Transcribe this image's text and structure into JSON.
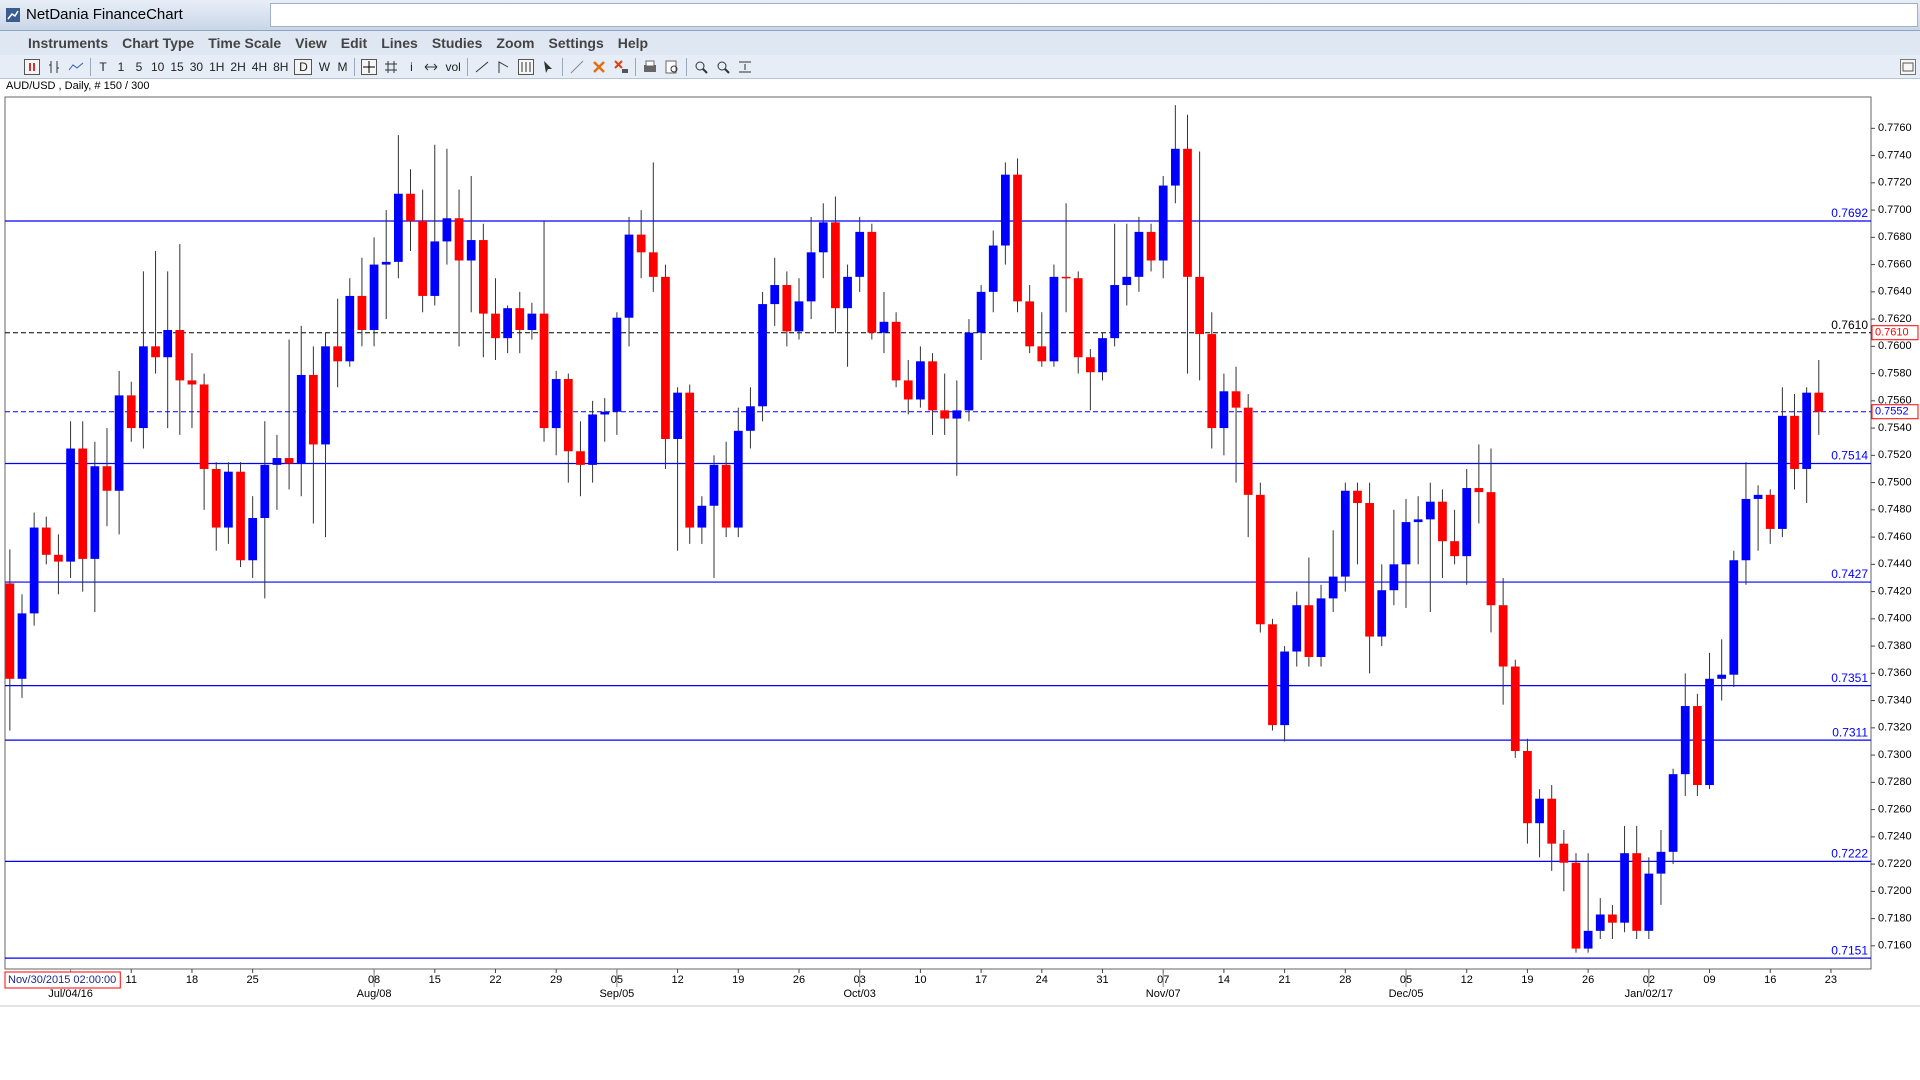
{
  "window": {
    "title": "NetDania FinanceChart"
  },
  "menu": [
    "Instruments",
    "Chart Type",
    "Time Scale",
    "View",
    "Edit",
    "Lines",
    "Studies",
    "Zoom",
    "Settings",
    "Help"
  ],
  "toolbar": [
    "T",
    "1",
    "5",
    "10",
    "15",
    "30",
    "1H",
    "2H",
    "4H",
    "8H",
    "D",
    "W",
    "M",
    "i",
    "vol"
  ],
  "cursor_label": "Nov/30/2015 02:00:00",
  "chart_data": {
    "type": "candlestick",
    "title": "AUD/USD , Daily, # 150 / 300",
    "up_color": "#0000ff",
    "down_color": "#ff0000",
    "open": [
      0.7426,
      0.7356,
      0.7404,
      0.7467,
      0.7447,
      0.7442,
      0.7525,
      0.7444,
      0.7512,
      0.7494,
      0.7564,
      0.754,
      0.76,
      0.7592,
      0.7612,
      0.7575,
      0.7572,
      0.751,
      0.7467,
      0.7508,
      0.7443,
      0.7474,
      0.7513,
      0.7518,
      0.7514,
      0.7579,
      0.7528,
      0.76,
      0.7589,
      0.7637,
      0.7612,
      0.766,
      0.7662,
      0.7712,
      0.7692,
      0.7637,
      0.7677,
      0.7694,
      0.7663,
      0.7678,
      0.7624,
      0.7606,
      0.7628,
      0.7612,
      0.7624,
      0.754,
      0.7576,
      0.7523,
      0.7513,
      0.755,
      0.7552,
      0.7621,
      0.7682,
      0.7669,
      0.7651,
      0.7532,
      0.7566,
      0.7467,
      0.7483,
      0.7513,
      0.7467,
      0.7538,
      0.7556,
      0.7631,
      0.7645,
      0.7611,
      0.7633,
      0.7669,
      0.7691,
      0.7628,
      0.7651,
      0.7684,
      0.761,
      0.7618,
      0.7575,
      0.7561,
      0.7589,
      0.7553,
      0.7547,
      0.7553,
      0.761,
      0.764,
      0.7674,
      0.7726,
      0.7633,
      0.76,
      0.7589,
      0.7651,
      0.765,
      0.7592,
      0.7581,
      0.7606,
      0.7645,
      0.7651,
      0.7684,
      0.7663,
      0.7718,
      0.7745,
      0.7651,
      0.7609,
      0.754,
      0.7567,
      0.7555,
      0.7491,
      0.7396,
      0.7322,
      0.7376,
      0.741,
      0.7372,
      0.7415,
      0.7431,
      0.7494,
      0.7485,
      0.7387,
      0.7421,
      0.744,
      0.7471,
      0.7473,
      0.7486,
      0.7457,
      0.7446,
      0.7496,
      0.7493,
      0.741,
      0.7365,
      0.7303,
      0.725,
      0.7268,
      0.7235,
      0.7221,
      0.7158,
      0.7171,
      0.7183,
      0.7177,
      0.7228,
      0.7171,
      0.7213,
      0.7229,
      0.7286,
      0.7336,
      0.7278,
      0.7356,
      0.7359,
      0.7443,
      0.7488,
      0.7491,
      0.7466,
      0.7549,
      0.751,
      0.7566
    ],
    "high": [
      0.7451,
      0.7418,
      0.7478,
      0.7475,
      0.7462,
      0.7545,
      0.7545,
      0.753,
      0.754,
      0.7582,
      0.7574,
      0.7655,
      0.767,
      0.7655,
      0.7675,
      0.7595,
      0.758,
      0.7515,
      0.7515,
      0.7515,
      0.749,
      0.7545,
      0.7535,
      0.7605,
      0.7615,
      0.76,
      0.761,
      0.7635,
      0.765,
      0.7665,
      0.768,
      0.77,
      0.7755,
      0.773,
      0.7715,
      0.7748,
      0.7745,
      0.7715,
      0.7725,
      0.769,
      0.765,
      0.763,
      0.764,
      0.7632,
      0.7692,
      0.7582,
      0.758,
      0.7545,
      0.756,
      0.7562,
      0.7625,
      0.7695,
      0.77,
      0.7735,
      0.766,
      0.757,
      0.7572,
      0.749,
      0.752,
      0.753,
      0.7555,
      0.757,
      0.764,
      0.7665,
      0.7655,
      0.765,
      0.7695,
      0.7705,
      0.771,
      0.766,
      0.7695,
      0.769,
      0.764,
      0.7625,
      0.759,
      0.76,
      0.7595,
      0.758,
      0.7575,
      0.762,
      0.7645,
      0.7685,
      0.7735,
      0.7738,
      0.7645,
      0.7625,
      0.766,
      0.7705,
      0.7655,
      0.7598,
      0.761,
      0.769,
      0.769,
      0.7695,
      0.769,
      0.7725,
      0.7777,
      0.777,
      0.7743,
      0.7625,
      0.758,
      0.7585,
      0.7565,
      0.75,
      0.74,
      0.738,
      0.742,
      0.7445,
      0.7425,
      0.7465,
      0.75,
      0.75,
      0.75,
      0.744,
      0.748,
      0.7488,
      0.749,
      0.75,
      0.7495,
      0.748,
      0.751,
      0.7528,
      0.7525,
      0.743,
      0.737,
      0.7312,
      0.7275,
      0.7278,
      0.7245,
      0.7228,
      0.7228,
      0.7195,
      0.719,
      0.7248,
      0.7248,
      0.7225,
      0.7245,
      0.729,
      0.736,
      0.7345,
      0.7375,
      0.7385,
      0.745,
      0.7515,
      0.7498,
      0.7495,
      0.757,
      0.7565,
      0.757,
      0.759
    ],
    "low": [
      0.7318,
      0.7342,
      0.7395,
      0.744,
      0.7418,
      0.743,
      0.742,
      0.7405,
      0.7468,
      0.7462,
      0.753,
      0.7525,
      0.758,
      0.754,
      0.7535,
      0.754,
      0.748,
      0.745,
      0.7455,
      0.7438,
      0.743,
      0.7415,
      0.748,
      0.7495,
      0.749,
      0.747,
      0.746,
      0.757,
      0.7585,
      0.76,
      0.76,
      0.762,
      0.765,
      0.767,
      0.7625,
      0.763,
      0.766,
      0.76,
      0.7625,
      0.7592,
      0.759,
      0.7595,
      0.7595,
      0.7605,
      0.753,
      0.752,
      0.75,
      0.749,
      0.75,
      0.753,
      0.7535,
      0.76,
      0.765,
      0.764,
      0.751,
      0.745,
      0.7455,
      0.7455,
      0.743,
      0.746,
      0.746,
      0.7525,
      0.7545,
      0.7615,
      0.76,
      0.7605,
      0.762,
      0.765,
      0.761,
      0.7585,
      0.764,
      0.7605,
      0.7595,
      0.757,
      0.755,
      0.7555,
      0.7535,
      0.7535,
      0.7505,
      0.7545,
      0.759,
      0.7625,
      0.766,
      0.7625,
      0.7595,
      0.7585,
      0.7585,
      0.7625,
      0.758,
      0.7553,
      0.7575,
      0.76,
      0.763,
      0.764,
      0.7655,
      0.765,
      0.7705,
      0.758,
      0.7575,
      0.7525,
      0.752,
      0.75,
      0.746,
      0.739,
      0.7318,
      0.731,
      0.7365,
      0.7365,
      0.7365,
      0.7405,
      0.742,
      0.744,
      0.736,
      0.738,
      0.741,
      0.7408,
      0.744,
      0.7405,
      0.743,
      0.744,
      0.7425,
      0.747,
      0.739,
      0.7337,
      0.7298,
      0.7235,
      0.7225,
      0.7215,
      0.72,
      0.7155,
      0.7155,
      0.7165,
      0.7165,
      0.717,
      0.7165,
      0.7165,
      0.719,
      0.722,
      0.727,
      0.727,
      0.7275,
      0.734,
      0.735,
      0.7425,
      0.745,
      0.7455,
      0.746,
      0.7495,
      0.7485,
      0.7535
    ],
    "close": [
      0.7356,
      0.7404,
      0.7467,
      0.7447,
      0.7442,
      0.7525,
      0.7444,
      0.7512,
      0.7494,
      0.7564,
      0.754,
      0.76,
      0.7592,
      0.7612,
      0.7575,
      0.7572,
      0.751,
      0.7467,
      0.7508,
      0.7443,
      0.7474,
      0.7513,
      0.7518,
      0.7514,
      0.7579,
      0.7528,
      0.76,
      0.7589,
      0.7637,
      0.7612,
      0.766,
      0.7662,
      0.7712,
      0.7692,
      0.7637,
      0.7677,
      0.7694,
      0.7663,
      0.7678,
      0.7624,
      0.7606,
      0.7628,
      0.7612,
      0.7624,
      0.754,
      0.7576,
      0.7523,
      0.7513,
      0.755,
      0.7552,
      0.7621,
      0.7682,
      0.7669,
      0.7651,
      0.7532,
      0.7566,
      0.7467,
      0.7483,
      0.7513,
      0.7467,
      0.7538,
      0.7556,
      0.7631,
      0.7645,
      0.7611,
      0.7633,
      0.7669,
      0.7691,
      0.7628,
      0.7651,
      0.7684,
      0.761,
      0.7618,
      0.7575,
      0.7561,
      0.7589,
      0.7553,
      0.7547,
      0.7553,
      0.761,
      0.764,
      0.7674,
      0.7726,
      0.7633,
      0.76,
      0.7589,
      0.7651,
      0.765,
      0.7592,
      0.7581,
      0.7606,
      0.7645,
      0.7651,
      0.7684,
      0.7663,
      0.7718,
      0.7745,
      0.7651,
      0.7609,
      0.754,
      0.7567,
      0.7555,
      0.7491,
      0.7396,
      0.7322,
      0.7376,
      0.741,
      0.7372,
      0.7415,
      0.7431,
      0.7494,
      0.7485,
      0.7387,
      0.7421,
      0.744,
      0.7471,
      0.7473,
      0.7486,
      0.7457,
      0.7446,
      0.7496,
      0.7493,
      0.741,
      0.7365,
      0.7303,
      0.725,
      0.7268,
      0.7235,
      0.7221,
      0.7158,
      0.7171,
      0.7183,
      0.7177,
      0.7228,
      0.7171,
      0.7213,
      0.7229,
      0.7286,
      0.7336,
      0.7278,
      0.7356,
      0.7359,
      0.7443,
      0.7488,
      0.7491,
      0.7466,
      0.7549,
      0.751,
      0.7566,
      0.7552
    ],
    "xlim": [
      -0.4,
      153.3
    ],
    "xticks": [
      {
        "value": 10,
        "label": "11"
      },
      {
        "value": 15,
        "label": "18"
      },
      {
        "value": 20,
        "label": "25"
      },
      {
        "value": 30,
        "label": "08"
      },
      {
        "value": 35,
        "label": "15"
      },
      {
        "value": 40,
        "label": "22"
      },
      {
        "value": 45,
        "label": "29"
      },
      {
        "value": 50,
        "label": "05"
      },
      {
        "value": 55,
        "label": "12"
      },
      {
        "value": 60,
        "label": "19"
      },
      {
        "value": 65,
        "label": "26"
      },
      {
        "value": 70,
        "label": "03"
      },
      {
        "value": 75,
        "label": "10"
      },
      {
        "value": 80,
        "label": "17"
      },
      {
        "value": 85,
        "label": "24"
      },
      {
        "value": 90,
        "label": "31"
      },
      {
        "value": 95,
        "label": "07"
      },
      {
        "value": 100,
        "label": "14"
      },
      {
        "value": 105,
        "label": "21"
      },
      {
        "value": 110,
        "label": "28"
      },
      {
        "value": 115,
        "label": "05"
      },
      {
        "value": 120,
        "label": "12"
      },
      {
        "value": 125,
        "label": "19"
      },
      {
        "value": 130,
        "label": "26"
      },
      {
        "value": 135,
        "label": "02"
      },
      {
        "value": 140,
        "label": "09"
      },
      {
        "value": 145,
        "label": "16"
      },
      {
        "value": 150,
        "label": "23"
      }
    ],
    "xticks_major": [
      {
        "value": 5,
        "label": "Jul/04/16"
      },
      {
        "value": 30,
        "label": "Aug/08"
      },
      {
        "value": 50,
        "label": "Sep/05"
      },
      {
        "value": 70,
        "label": "Oct/03"
      },
      {
        "value": 95,
        "label": "Nov/07"
      },
      {
        "value": 115,
        "label": "Dec/05"
      },
      {
        "value": 135,
        "label": "Jan/02/17"
      }
    ],
    "ylim": [
      0.7143,
      0.7783
    ],
    "yticks": [
      {
        "value": 0.716,
        "label": "0.7160"
      },
      {
        "value": 0.718,
        "label": "0.7180"
      },
      {
        "value": 0.72,
        "label": "0.7200"
      },
      {
        "value": 0.722,
        "label": "0.7220"
      },
      {
        "value": 0.724,
        "label": "0.7240"
      },
      {
        "value": 0.726,
        "label": "0.7260"
      },
      {
        "value": 0.728,
        "label": "0.7280"
      },
      {
        "value": 0.73,
        "label": "0.7300"
      },
      {
        "value": 0.732,
        "label": "0.7320"
      },
      {
        "value": 0.734,
        "label": "0.7340"
      },
      {
        "value": 0.736,
        "label": "0.7360"
      },
      {
        "value": 0.738,
        "label": "0.7380"
      },
      {
        "value": 0.74,
        "label": "0.7400"
      },
      {
        "value": 0.742,
        "label": "0.7420"
      },
      {
        "value": 0.744,
        "label": "0.7440"
      },
      {
        "value": 0.746,
        "label": "0.7460"
      },
      {
        "value": 0.748,
        "label": "0.7480"
      },
      {
        "value": 0.75,
        "label": "0.7500"
      },
      {
        "value": 0.752,
        "label": "0.7520"
      },
      {
        "value": 0.754,
        "label": "0.7540"
      },
      {
        "value": 0.756,
        "label": "0.7560"
      },
      {
        "value": 0.758,
        "label": "0.7580"
      },
      {
        "value": 0.76,
        "label": "0.7600"
      },
      {
        "value": 0.762,
        "label": "0.7620"
      },
      {
        "value": 0.764,
        "label": "0.7640"
      },
      {
        "value": 0.766,
        "label": "0.7660"
      },
      {
        "value": 0.768,
        "label": "0.7680"
      },
      {
        "value": 0.77,
        "label": "0.7700"
      },
      {
        "value": 0.772,
        "label": "0.7720"
      },
      {
        "value": 0.774,
        "label": "0.7740"
      },
      {
        "value": 0.776,
        "label": "0.7760"
      }
    ],
    "levels": [
      0.7692,
      0.7514,
      0.7427,
      0.7351,
      0.7311,
      0.7222,
      0.7151
    ],
    "level_color": "#0000ff",
    "reference_line": {
      "value": 0.761,
      "label": "0.7610",
      "color": "#000000"
    },
    "last_price": {
      "value": 0.7552,
      "label": "0.7552",
      "color": "#0000ff"
    }
  }
}
